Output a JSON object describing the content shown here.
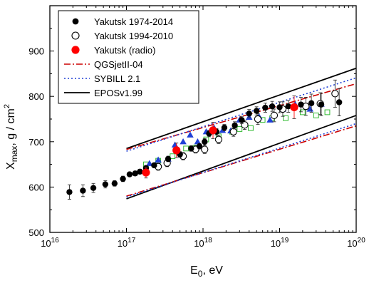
{
  "chart_data": {
    "type": "scatter",
    "xscale": "log",
    "xlim": [
      1e+16,
      1e+20
    ],
    "ylim": [
      500,
      1000
    ],
    "xlabel_main": "E",
    "xlabel_sub": "0",
    "xlabel_unit": ",  eV",
    "ylabel_main": "X",
    "ylabel_sub": "max",
    "ylabel_unit": ",  g / cm",
    "ylabel_sup": "2",
    "x_tick_labels": [
      {
        "value": 1e+16,
        "base": "10",
        "exp": "16"
      },
      {
        "value": 1e+17,
        "base": "10",
        "exp": "17"
      },
      {
        "value": 1e+18,
        "base": "10",
        "exp": "18"
      },
      {
        "value": 1e+19,
        "base": "10",
        "exp": "19"
      },
      {
        "value": 1e+20,
        "base": "10",
        "exp": "20"
      }
    ],
    "y_ticks": [
      500,
      600,
      700,
      800,
      900
    ],
    "y_tick_labels": [
      "500",
      "600",
      "700",
      "800",
      "900"
    ],
    "legend_position": "top-left",
    "legend": [
      {
        "label": "Yakutsk 1974-2014",
        "style": "filled-circle",
        "color": "#000000"
      },
      {
        "label": "Yakutsk 1994-2010",
        "style": "open-circle",
        "color": "#000000"
      },
      {
        "label": "Yakutsk (radio)",
        "style": "filled-circle",
        "color": "#ff0000"
      },
      {
        "label": "QGSjetII-04",
        "style": "dash-dot",
        "color": "#cc0000"
      },
      {
        "label": "SYBILL 2.1",
        "style": "dotted",
        "color": "#1f3fd6"
      },
      {
        "label": "EPOSv1.99",
        "style": "solid",
        "color": "#000000"
      }
    ],
    "series": [
      {
        "name": "Yakutsk 1974-2014",
        "marker": "filled-circle",
        "color": "#000000",
        "points": [
          {
            "x": 1.8e+16,
            "y": 589,
            "err": 16
          },
          {
            "x": 2.7e+16,
            "y": 592,
            "err": 13
          },
          {
            "x": 3.7e+16,
            "y": 598,
            "err": 10
          },
          {
            "x": 5.3e+16,
            "y": 606,
            "err": 8
          },
          {
            "x": 7e+16,
            "y": 608,
            "err": 6
          },
          {
            "x": 9e+16,
            "y": 618,
            "err": 6
          },
          {
            "x": 1.1e+17,
            "y": 628,
            "err": 5
          },
          {
            "x": 1.3e+17,
            "y": 630,
            "err": 5
          },
          {
            "x": 1.5e+17,
            "y": 634,
            "err": 5
          },
          {
            "x": 1.8e+17,
            "y": 642,
            "err": 5
          },
          {
            "x": 2.3e+17,
            "y": 648,
            "err": 5
          },
          {
            "x": 3.5e+17,
            "y": 662,
            "err": 6
          },
          {
            "x": 5e+17,
            "y": 672,
            "err": 6
          },
          {
            "x": 7e+17,
            "y": 685,
            "err": 6
          },
          {
            "x": 9e+17,
            "y": 690,
            "err": 6
          },
          {
            "x": 1.05e+18,
            "y": 700,
            "err": 7
          },
          {
            "x": 1.2e+18,
            "y": 718,
            "err": 7
          },
          {
            "x": 1.5e+18,
            "y": 722,
            "err": 7
          },
          {
            "x": 1.9e+18,
            "y": 731,
            "err": 7
          },
          {
            "x": 2.6e+18,
            "y": 736,
            "err": 8
          },
          {
            "x": 3.2e+18,
            "y": 748,
            "err": 8
          },
          {
            "x": 4e+18,
            "y": 762,
            "err": 9
          },
          {
            "x": 5e+18,
            "y": 768,
            "err": 9
          },
          {
            "x": 6.5e+18,
            "y": 775,
            "err": 10
          },
          {
            "x": 8e+18,
            "y": 778,
            "err": 11
          },
          {
            "x": 1e+19,
            "y": 776,
            "err": 12
          },
          {
            "x": 1.3e+19,
            "y": 778,
            "err": 13
          },
          {
            "x": 1.9e+19,
            "y": 782,
            "err": 16
          },
          {
            "x": 2.6e+19,
            "y": 785,
            "err": 20
          },
          {
            "x": 3.5e+19,
            "y": 782,
            "err": 25
          },
          {
            "x": 6e+19,
            "y": 787,
            "err": 30
          }
        ]
      },
      {
        "name": "Yakutsk 1994-2010",
        "marker": "open-circle",
        "color": "#000000",
        "points": [
          {
            "x": 2.6e+17,
            "y": 645,
            "err": 8
          },
          {
            "x": 3.4e+17,
            "y": 653,
            "err": 8
          },
          {
            "x": 5.5e+17,
            "y": 668,
            "err": 8
          },
          {
            "x": 8e+17,
            "y": 683,
            "err": 8
          },
          {
            "x": 1.05e+18,
            "y": 683,
            "err": 9
          },
          {
            "x": 1.6e+18,
            "y": 705,
            "err": 9
          },
          {
            "x": 2.5e+18,
            "y": 722,
            "err": 10
          },
          {
            "x": 3.5e+18,
            "y": 737,
            "err": 10
          },
          {
            "x": 5.2e+18,
            "y": 750,
            "err": 12
          },
          {
            "x": 8.5e+18,
            "y": 758,
            "err": 14
          },
          {
            "x": 1.1e+19,
            "y": 772,
            "err": 16
          },
          {
            "x": 2.2e+19,
            "y": 778,
            "err": 20
          },
          {
            "x": 3.4e+19,
            "y": 784,
            "err": 24
          },
          {
            "x": 5.3e+19,
            "y": 806,
            "err": 30
          }
        ]
      },
      {
        "name": "Yakutsk (radio)",
        "marker": "filled-circle-large",
        "color": "#ff0000",
        "points": [
          {
            "x": 1.8e+17,
            "y": 632,
            "err": 12
          },
          {
            "x": 4.5e+17,
            "y": 681,
            "err": 16
          },
          {
            "x": 1.35e+18,
            "y": 725,
            "err": 18
          },
          {
            "x": 1.55e+19,
            "y": 776,
            "err": 25
          }
        ]
      },
      {
        "marker": "filled-triangle",
        "color": "#1f3fd6",
        "points": [
          {
            "x": 2e+17,
            "y": 652
          },
          {
            "x": 2.6e+17,
            "y": 660
          },
          {
            "x": 3.5e+17,
            "y": 662
          },
          {
            "x": 4.3e+17,
            "y": 693
          },
          {
            "x": 5.5e+17,
            "y": 700
          },
          {
            "x": 6.8e+17,
            "y": 715
          },
          {
            "x": 8.5e+17,
            "y": 700
          },
          {
            "x": 1.1e+18,
            "y": 722
          },
          {
            "x": 1.4e+18,
            "y": 730
          },
          {
            "x": 1.8e+18,
            "y": 725
          },
          {
            "x": 2.3e+18,
            "y": 724
          },
          {
            "x": 3e+18,
            "y": 748
          },
          {
            "x": 4e+18,
            "y": 754
          },
          {
            "x": 5.4e+18,
            "y": 755
          },
          {
            "x": 7.5e+18,
            "y": 748
          },
          {
            "x": 1.1e+19,
            "y": 772
          },
          {
            "x": 1.6e+19,
            "y": 782
          },
          {
            "x": 2.5e+19,
            "y": 772
          },
          {
            "x": 3.5e+19,
            "y": 783
          }
        ]
      },
      {
        "marker": "open-square",
        "color": "#33bb33",
        "points": [
          {
            "x": 1.8e+17,
            "y": 650
          },
          {
            "x": 2.6e+17,
            "y": 658
          },
          {
            "x": 4e+17,
            "y": 668
          },
          {
            "x": 6e+17,
            "y": 685
          },
          {
            "x": 8e+17,
            "y": 687
          },
          {
            "x": 1.1e+18,
            "y": 705
          },
          {
            "x": 1.6e+18,
            "y": 712
          },
          {
            "x": 2.4e+18,
            "y": 722
          },
          {
            "x": 3e+18,
            "y": 728
          },
          {
            "x": 4.2e+18,
            "y": 730
          },
          {
            "x": 6e+18,
            "y": 748
          },
          {
            "x": 8e+18,
            "y": 752
          },
          {
            "x": 1.2e+19,
            "y": 752
          },
          {
            "x": 2e+19,
            "y": 765
          },
          {
            "x": 3e+19,
            "y": 758
          },
          {
            "x": 4.2e+19,
            "y": 765
          }
        ]
      }
    ],
    "model_lines": [
      {
        "name": "EPOSv1.99",
        "style": "solid",
        "color": "#000000",
        "points": [
          [
            1e+17,
            685
          ],
          [
            1e+20,
            862
          ]
        ]
      },
      {
        "name": "EPOSv1.99",
        "style": "solid",
        "color": "#000000",
        "points": [
          [
            1e+17,
            574
          ],
          [
            1e+20,
            758
          ]
        ]
      },
      {
        "name": "QGSjetII-04",
        "style": "dash-dot",
        "color": "#cc0000",
        "points": [
          [
            1e+17,
            683
          ],
          [
            1e+20,
            828
          ]
        ]
      },
      {
        "name": "QGSjetII-04",
        "style": "dash-dot",
        "color": "#cc0000",
        "points": [
          [
            1e+17,
            580
          ],
          [
            1e+20,
            735
          ]
        ]
      },
      {
        "name": "SYBILL 2.1",
        "style": "dotted",
        "color": "#1f3fd6",
        "points": [
          [
            1e+17,
            679
          ],
          [
            1e+20,
            841
          ]
        ]
      },
      {
        "name": "SYBILL 2.1",
        "style": "dotted",
        "color": "#1f3fd6",
        "points": [
          [
            1e+17,
            578
          ],
          [
            1e+20,
            740
          ]
        ]
      }
    ]
  }
}
